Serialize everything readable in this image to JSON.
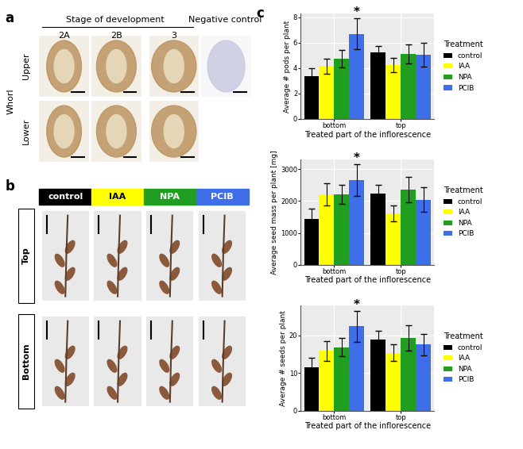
{
  "panel_a": {
    "letter": "a",
    "header": "Stage of development",
    "stages": [
      "2A",
      "2B",
      "3"
    ],
    "negative_control": "Negative control",
    "row_group": "Whorl",
    "rows": [
      "Upper",
      "Lower"
    ]
  },
  "panel_b": {
    "letter": "b",
    "treatments": [
      {
        "name": "control",
        "color": "#000000"
      },
      {
        "name": "IAA",
        "color": "#ffff00"
      },
      {
        "name": "NPA",
        "color": "#1f9e1f"
      },
      {
        "name": "PCIB",
        "color": "#3f6fe8"
      }
    ],
    "rows": [
      "Top",
      "Bottom"
    ]
  },
  "panel_c": {
    "letter": "c"
  },
  "chart_data": [
    {
      "type": "bar",
      "x_label": "Treated part of the inflorescence",
      "y_label": "Average # pods per plant",
      "categories": [
        "bottom",
        "top"
      ],
      "ylim": [
        0,
        8.3
      ],
      "yticks": [
        0,
        2,
        4,
        6,
        8
      ],
      "grid": true,
      "legend": "right",
      "legend_title": "Treatment",
      "series": [
        {
          "name": "control",
          "color": "#000000",
          "values": [
            3.35,
            5.25
          ],
          "errors": [
            0.65,
            0.5
          ]
        },
        {
          "name": "IAA",
          "color": "#ffff00",
          "values": [
            4.15,
            4.25
          ],
          "errors": [
            0.6,
            0.55
          ]
        },
        {
          "name": "NPA",
          "color": "#1f9e1f",
          "values": [
            4.75,
            5.1
          ],
          "errors": [
            0.7,
            0.75
          ]
        },
        {
          "name": "PCIB",
          "color": "#3f6fe8",
          "values": [
            6.7,
            5.05
          ],
          "errors": [
            1.2,
            0.95
          ]
        }
      ],
      "annotations": [
        {
          "text": "*",
          "category": "bottom",
          "series": "PCIB"
        }
      ]
    },
    {
      "type": "bar",
      "x_label": "Treated part of the inflorescence",
      "y_label": "Average seed mass per plant [mg]",
      "categories": [
        "bottom",
        "top"
      ],
      "ylim": [
        0,
        3300
      ],
      "yticks": [
        0,
        1000,
        2000,
        3000
      ],
      "grid": true,
      "legend": "right",
      "legend_title": "Treatment",
      "series": [
        {
          "name": "control",
          "color": "#000000",
          "values": [
            1430,
            2230
          ],
          "errors": [
            330,
            270
          ]
        },
        {
          "name": "IAA",
          "color": "#ffff00",
          "values": [
            2200,
            1610
          ],
          "errors": [
            350,
            240
          ]
        },
        {
          "name": "NPA",
          "color": "#1f9e1f",
          "values": [
            2200,
            2360
          ],
          "errors": [
            300,
            390
          ]
        },
        {
          "name": "PCIB",
          "color": "#3f6fe8",
          "values": [
            2650,
            2040
          ],
          "errors": [
            500,
            380
          ]
        }
      ],
      "annotations": [
        {
          "text": "*",
          "category": "bottom",
          "series": "PCIB"
        }
      ]
    },
    {
      "type": "bar",
      "x_label": "Treated part of the inflorescence",
      "y_label": "Average # seeds per plant",
      "categories": [
        "bottom",
        "top"
      ],
      "ylim": [
        0,
        28
      ],
      "yticks": [
        0,
        10,
        20
      ],
      "grid": true,
      "legend": "right",
      "legend_title": "Treatment",
      "series": [
        {
          "name": "control",
          "color": "#000000",
          "values": [
            11.6,
            19.0
          ],
          "errors": [
            2.4,
            2.2
          ]
        },
        {
          "name": "IAA",
          "color": "#ffff00",
          "values": [
            15.9,
            15.4
          ],
          "errors": [
            2.6,
            2.2
          ]
        },
        {
          "name": "NPA",
          "color": "#1f9e1f",
          "values": [
            16.9,
            19.4
          ],
          "errors": [
            2.4,
            3.4
          ]
        },
        {
          "name": "PCIB",
          "color": "#3f6fe8",
          "values": [
            22.4,
            17.6
          ],
          "errors": [
            4.2,
            2.9
          ]
        }
      ],
      "annotations": [
        {
          "text": "*",
          "category": "bottom",
          "series": "PCIB"
        }
      ]
    }
  ]
}
